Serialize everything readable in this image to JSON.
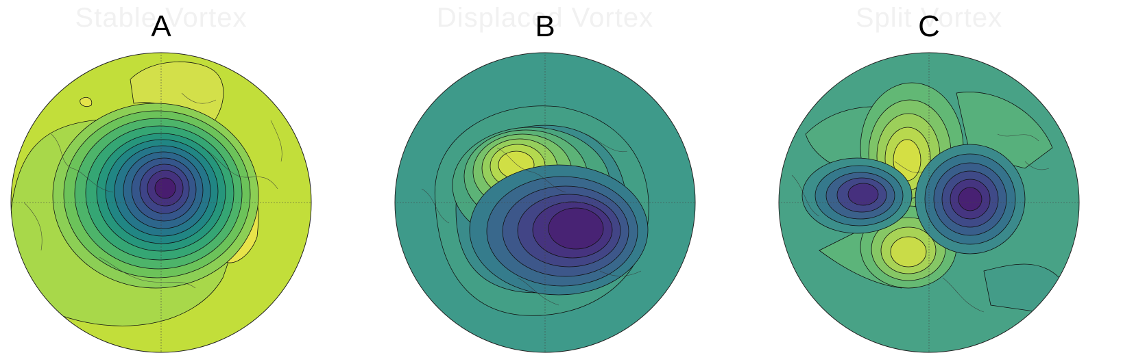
{
  "panels": [
    {
      "id": "A",
      "letter": "A",
      "title": "Stable Vortex"
    },
    {
      "id": "B",
      "letter": "B",
      "title": "Displaced Vortex"
    },
    {
      "id": "C",
      "letter": "C",
      "title": "Split Vortex"
    }
  ],
  "colors": {
    "viridis_dark": "#440154",
    "viridis_blue": "#3b528b",
    "viridis_teal": "#21908d",
    "viridis_green": "#5dc963",
    "viridis_yellow": "#fde725",
    "contour": "#111111",
    "coastline": "#333333"
  }
}
